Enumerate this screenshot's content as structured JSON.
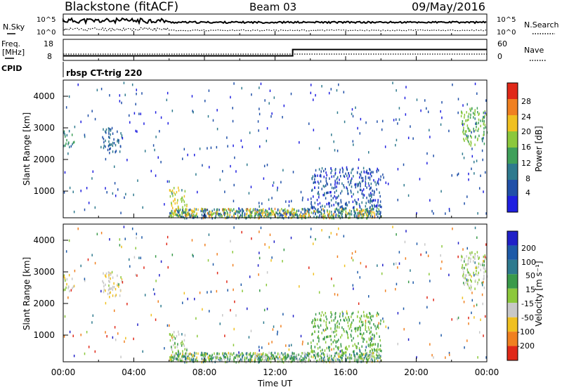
{
  "header": {
    "station": "Blackstone (fitACF)",
    "beam": "Beam 03",
    "date": "09/May/2016"
  },
  "nsky_panel": {
    "left_label": "N.Sky",
    "right_label": "N.Search",
    "tick_top": "10^5",
    "tick_bottom": "10^0"
  },
  "freq_panel": {
    "left_label_line1": "Freq.",
    "left_label_line2": "[MHz]",
    "left_tick_top": "18",
    "left_tick_bottom": "8",
    "right_label": "Nave",
    "right_tick_top": "60",
    "right_tick_bottom": "0"
  },
  "cpid": {
    "label": "CPID",
    "program": "rbsp CT-trig 220"
  },
  "power_panel": {
    "ylabel": "Slant Range [km]",
    "yticks": [
      "1000",
      "2000",
      "3000",
      "4000"
    ],
    "colorbar_label": "Power [dB]",
    "colorbar_ticks": [
      "4",
      "8",
      "12",
      "16",
      "20",
      "24",
      "28"
    ],
    "colorbar_colors": [
      "#1f1fe0",
      "#2050a8",
      "#2e7a8e",
      "#3fa05a",
      "#8cc83c",
      "#f0c020",
      "#f08020",
      "#e02818"
    ]
  },
  "velocity_panel": {
    "ylabel": "Slant Range [km]",
    "yticks": [
      "1000",
      "2000",
      "3000",
      "4000"
    ],
    "colorbar_label": "Velocity [m s⁻¹]",
    "colorbar_ticks": [
      "200",
      "100",
      "50",
      "15",
      "-15",
      "-50",
      "-100",
      "-200"
    ],
    "colorbar_colors": [
      "#2020c8",
      "#1e5aa8",
      "#2e7a8e",
      "#3a9a4a",
      "#8cc83c",
      "#c8c8c8",
      "#f0c020",
      "#f08020",
      "#e02818"
    ]
  },
  "x_axis": {
    "ticks": [
      "00:00",
      "04:00",
      "08:00",
      "12:00",
      "16:00",
      "20:00",
      "00:00"
    ],
    "label": "Time UT"
  },
  "chart_data": {
    "type": "heatmap",
    "x_range_hours": [
      0,
      24
    ],
    "slant_range_km": [
      180,
      4550
    ],
    "frequency_mhz": [
      {
        "from_hour": 0,
        "to_hour": 13,
        "value": 10.5
      },
      {
        "from_hour": 13,
        "to_hour": 24,
        "value": 15.5
      }
    ],
    "power_db_range": [
      0,
      30
    ],
    "velocity_range": [
      -250,
      250
    ],
    "echo_regions": [
      {
        "t0": 0.0,
        "t1": 0.6,
        "r0": 2450,
        "r1": 3000,
        "power": 12,
        "velocity": -30
      },
      {
        "t0": 2.2,
        "t1": 3.3,
        "r0": 2300,
        "r1": 3100,
        "power": 8,
        "velocity": -40
      },
      {
        "t0": 6.0,
        "t1": 7.0,
        "r0": 300,
        "r1": 1200,
        "power": 20,
        "velocity": -10
      },
      {
        "t0": 14.0,
        "t1": 18.0,
        "r0": 500,
        "r1": 1800,
        "power": 6,
        "velocity": 20
      },
      {
        "t0": 22.5,
        "t1": 24.0,
        "r0": 2500,
        "r1": 3700,
        "power": 16,
        "velocity": -10
      }
    ]
  }
}
